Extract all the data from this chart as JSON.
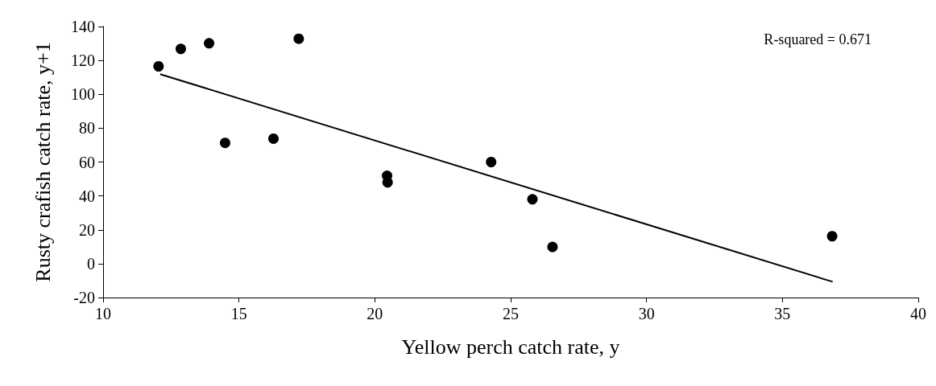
{
  "chart_data": {
    "type": "scatter",
    "xlabel": "Yellow perch catch rate, y",
    "ylabel": "Rusty crafish catch rate, y+1",
    "xlim": [
      10,
      40
    ],
    "xticks": [
      10,
      15,
      20,
      25,
      30,
      35,
      40
    ],
    "ylim": [
      -20,
      140
    ],
    "yticks": [
      -20,
      0,
      20,
      40,
      60,
      80,
      100,
      120,
      140
    ],
    "grid": false,
    "marker": "circle",
    "series": [
      {
        "color": "#000000",
        "x": [
          12.04,
          12.86,
          13.9,
          17.2,
          14.49,
          16.27,
          20.45,
          20.47,
          24.28,
          25.8,
          26.54,
          36.83
        ],
        "values": [
          116.5,
          126.8,
          130.1,
          132.8,
          71.3,
          73.8,
          51.9,
          48.0,
          60.0,
          38.0,
          9.9,
          16.2
        ]
      },
      {
        "type": "line",
        "color": "#000000",
        "marker": "none",
        "line_style": "solid",
        "x": [
          12.1,
          36.85
        ],
        "values": [
          111.9,
          -10.7
        ]
      }
    ],
    "annotations": [
      {
        "text": "R-squared = 0.671"
      }
    ]
  }
}
